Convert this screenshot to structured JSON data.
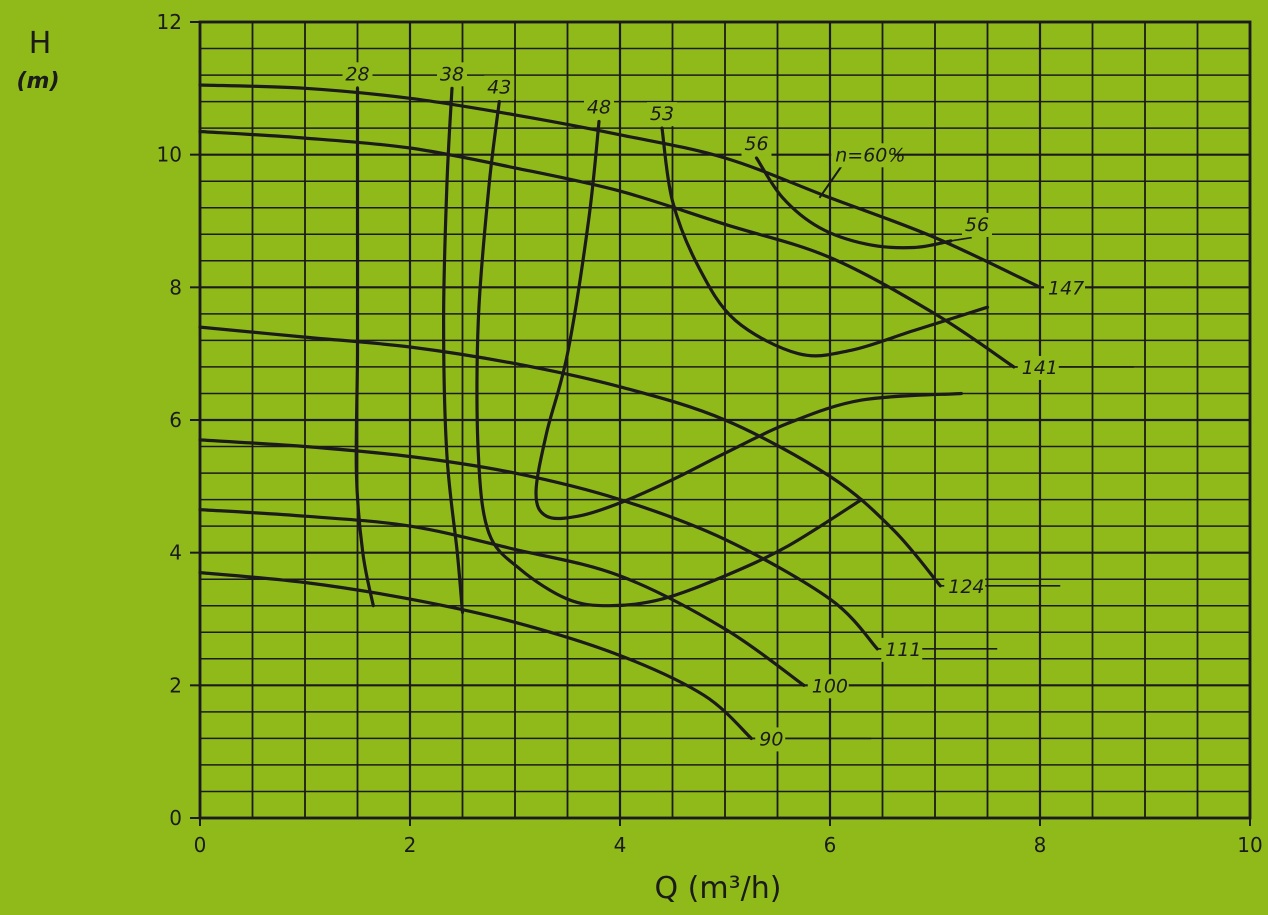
{
  "chart_data": {
    "type": "line",
    "xlabel": "Q (m³/h)",
    "ylabel": "H",
    "yunit": "(m)",
    "xlim": [
      0,
      10
    ],
    "ylim": [
      0,
      12
    ],
    "xticks": [
      "0",
      "2",
      "4",
      "6",
      "8",
      "10"
    ],
    "yticks": [
      "0",
      "2",
      "4",
      "6",
      "8",
      "10",
      "12"
    ],
    "grid": true,
    "head_curves": [
      {
        "label": "147",
        "points": [
          [
            0,
            11.05
          ],
          [
            1,
            11.0
          ],
          [
            2,
            10.85
          ],
          [
            3,
            10.6
          ],
          [
            4,
            10.3
          ],
          [
            5,
            9.95
          ],
          [
            6,
            9.35
          ],
          [
            7,
            8.75
          ],
          [
            8,
            8.0
          ]
        ]
      },
      {
        "label": "141",
        "points": [
          [
            0,
            10.35
          ],
          [
            1,
            10.25
          ],
          [
            2,
            10.1
          ],
          [
            3,
            9.8
          ],
          [
            4,
            9.45
          ],
          [
            5,
            8.95
          ],
          [
            6,
            8.45
          ],
          [
            7,
            7.6
          ],
          [
            7.75,
            6.8
          ]
        ]
      },
      {
        "label": "124",
        "points": [
          [
            0,
            7.4
          ],
          [
            1,
            7.25
          ],
          [
            2,
            7.1
          ],
          [
            3,
            6.85
          ],
          [
            4,
            6.5
          ],
          [
            5,
            6.0
          ],
          [
            6,
            5.15
          ],
          [
            6.6,
            4.35
          ],
          [
            7.05,
            3.5
          ]
        ]
      },
      {
        "label": "111",
        "points": [
          [
            0,
            5.7
          ],
          [
            1,
            5.6
          ],
          [
            2,
            5.45
          ],
          [
            3,
            5.2
          ],
          [
            4,
            4.8
          ],
          [
            5,
            4.2
          ],
          [
            6,
            3.3
          ],
          [
            6.45,
            2.55
          ]
        ]
      },
      {
        "label": "100",
        "points": [
          [
            0,
            4.65
          ],
          [
            1,
            4.55
          ],
          [
            2,
            4.4
          ],
          [
            3,
            4.05
          ],
          [
            4,
            3.65
          ],
          [
            5,
            2.85
          ],
          [
            5.75,
            2.0
          ]
        ]
      },
      {
        "label": "90",
        "points": [
          [
            0,
            3.7
          ],
          [
            1,
            3.55
          ],
          [
            2,
            3.3
          ],
          [
            3,
            2.95
          ],
          [
            4,
            2.45
          ],
          [
            4.8,
            1.85
          ],
          [
            5.25,
            1.2
          ]
        ]
      }
    ],
    "efficiency_curves": [
      {
        "label": "28",
        "points": [
          [
            1.5,
            11.0
          ],
          [
            1.5,
            9.0
          ],
          [
            1.5,
            7.0
          ],
          [
            1.49,
            5.2
          ],
          [
            1.55,
            4.0
          ],
          [
            1.65,
            3.2
          ]
        ]
      },
      {
        "label": "38",
        "points": [
          [
            2.4,
            11.0
          ],
          [
            2.35,
            9.5
          ],
          [
            2.32,
            7.5
          ],
          [
            2.35,
            5.5
          ],
          [
            2.45,
            4.0
          ],
          [
            2.5,
            3.1
          ]
        ]
      },
      {
        "label": "43",
        "points": [
          [
            2.85,
            10.8
          ],
          [
            2.75,
            9.5
          ],
          [
            2.65,
            7.5
          ],
          [
            2.65,
            5.5
          ],
          [
            2.75,
            4.3
          ],
          [
            3.05,
            3.75
          ],
          [
            3.5,
            3.3
          ],
          [
            3.9,
            3.2
          ],
          [
            4.4,
            3.3
          ],
          [
            5.0,
            3.65
          ],
          [
            5.6,
            4.1
          ],
          [
            6.3,
            4.8
          ]
        ]
      },
      {
        "label": "48",
        "points": [
          [
            3.8,
            10.5
          ],
          [
            3.7,
            9.0
          ],
          [
            3.5,
            7.0
          ],
          [
            3.3,
            5.8
          ],
          [
            3.2,
            4.9
          ],
          [
            3.3,
            4.55
          ],
          [
            3.6,
            4.55
          ],
          [
            4.0,
            4.75
          ],
          [
            4.5,
            5.1
          ],
          [
            5.0,
            5.5
          ],
          [
            5.6,
            5.95
          ],
          [
            6.3,
            6.3
          ],
          [
            7.25,
            6.4
          ]
        ]
      },
      {
        "label": "53",
        "points": [
          [
            4.4,
            10.4
          ],
          [
            4.5,
            9.3
          ],
          [
            4.75,
            8.3
          ],
          [
            5.1,
            7.5
          ],
          [
            5.7,
            7.0
          ],
          [
            6.2,
            7.05
          ],
          [
            6.8,
            7.35
          ],
          [
            7.5,
            7.7
          ]
        ]
      },
      {
        "label": "56",
        "points": [
          [
            5.3,
            9.95
          ],
          [
            5.55,
            9.35
          ],
          [
            5.9,
            8.9
          ],
          [
            6.35,
            8.65
          ],
          [
            6.8,
            8.6
          ],
          [
            7.15,
            8.7
          ]
        ]
      }
    ],
    "annotations": [
      "n=60%",
      "56"
    ]
  }
}
